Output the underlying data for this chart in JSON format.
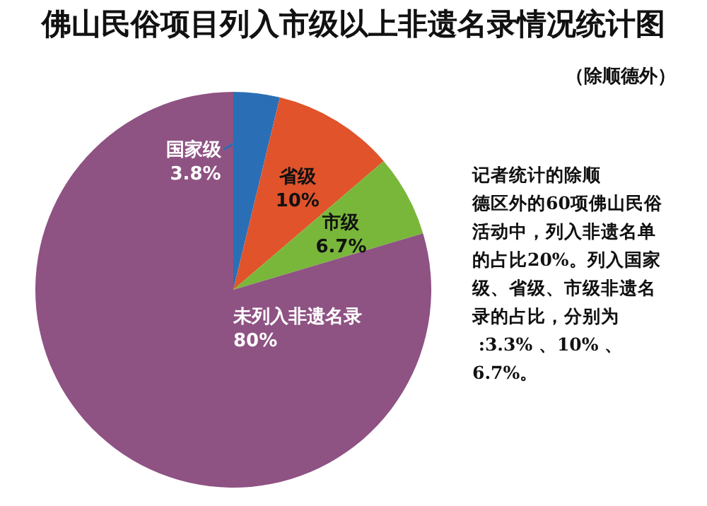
{
  "chart_data": {
    "type": "pie",
    "title": "佛山民俗项目列入市级以上非遗名录情况统计图",
    "subtitle": "（除顺德外）",
    "categories": [
      "国家级",
      "省级",
      "市级",
      "未列入非遗名录"
    ],
    "values": [
      3.8,
      10,
      6.7,
      80
    ],
    "colors": [
      "#2a6fb5",
      "#e0532b",
      "#79b73a",
      "#8e5283"
    ],
    "value_labels": [
      "3.8%",
      "10%",
      "6.7%",
      "80%"
    ],
    "annotations": [
      "记者统计的除顺德区外的60项佛山民俗活动中，列入非遗名单的占比20%。列入国家级、省级、市级非遗名录的占比，分别为 :3.3% 、10% 、6.7%。"
    ]
  }
}
